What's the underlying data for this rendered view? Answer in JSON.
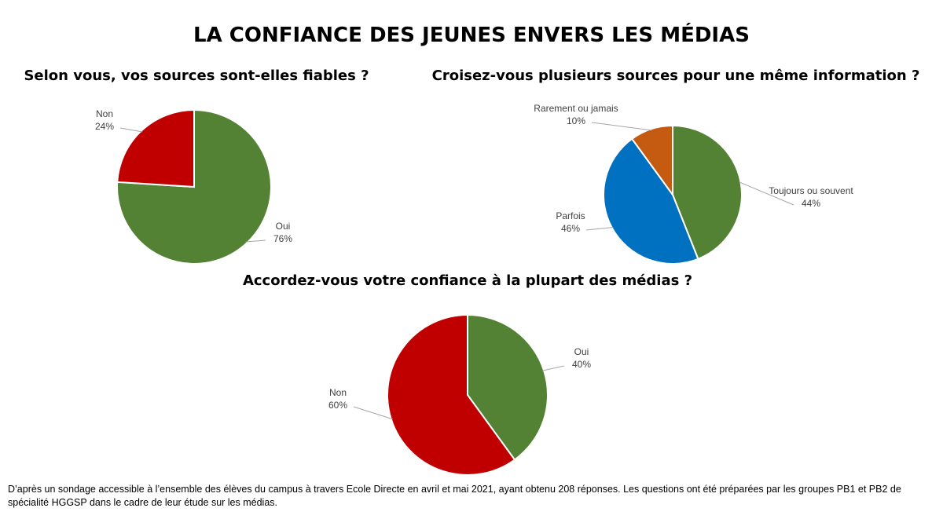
{
  "title": "LA CONFIANCE DES JEUNES ENVERS LES MÉDIAS",
  "chart_data": [
    {
      "type": "pie",
      "title": "Selon vous, vos sources sont-elles fiables ?",
      "categories": [
        "Oui",
        "Non"
      ],
      "values": [
        76,
        24
      ],
      "value_labels": [
        "76%",
        "24%"
      ],
      "colors": [
        "#548235",
        "#c00000"
      ]
    },
    {
      "type": "pie",
      "title": "Croisez-vous plusieurs sources pour une même information ?",
      "categories": [
        "Toujours ou souvent",
        "Parfois",
        "Rarement ou jamais"
      ],
      "values": [
        44,
        46,
        10
      ],
      "value_labels": [
        "44%",
        "46%",
        "10%"
      ],
      "colors": [
        "#548235",
        "#0070c0",
        "#c55a11"
      ]
    },
    {
      "type": "pie",
      "title": "Accordez-vous votre confiance à la plupart des médias ?",
      "categories": [
        "Oui",
        "Non"
      ],
      "values": [
        40,
        60
      ],
      "value_labels": [
        "40%",
        "60%"
      ],
      "colors": [
        "#548235",
        "#c00000"
      ]
    }
  ],
  "note": "D’après un sondage accessible à l’ensemble des élèves du campus à travers Ecole Directe en avril et mai 2021, ayant obtenu 208 réponses. Les questions ont été préparées par les groupes PB1 et PB2 de spécialité HGGSP dans le cadre de leur étude sur les médias."
}
